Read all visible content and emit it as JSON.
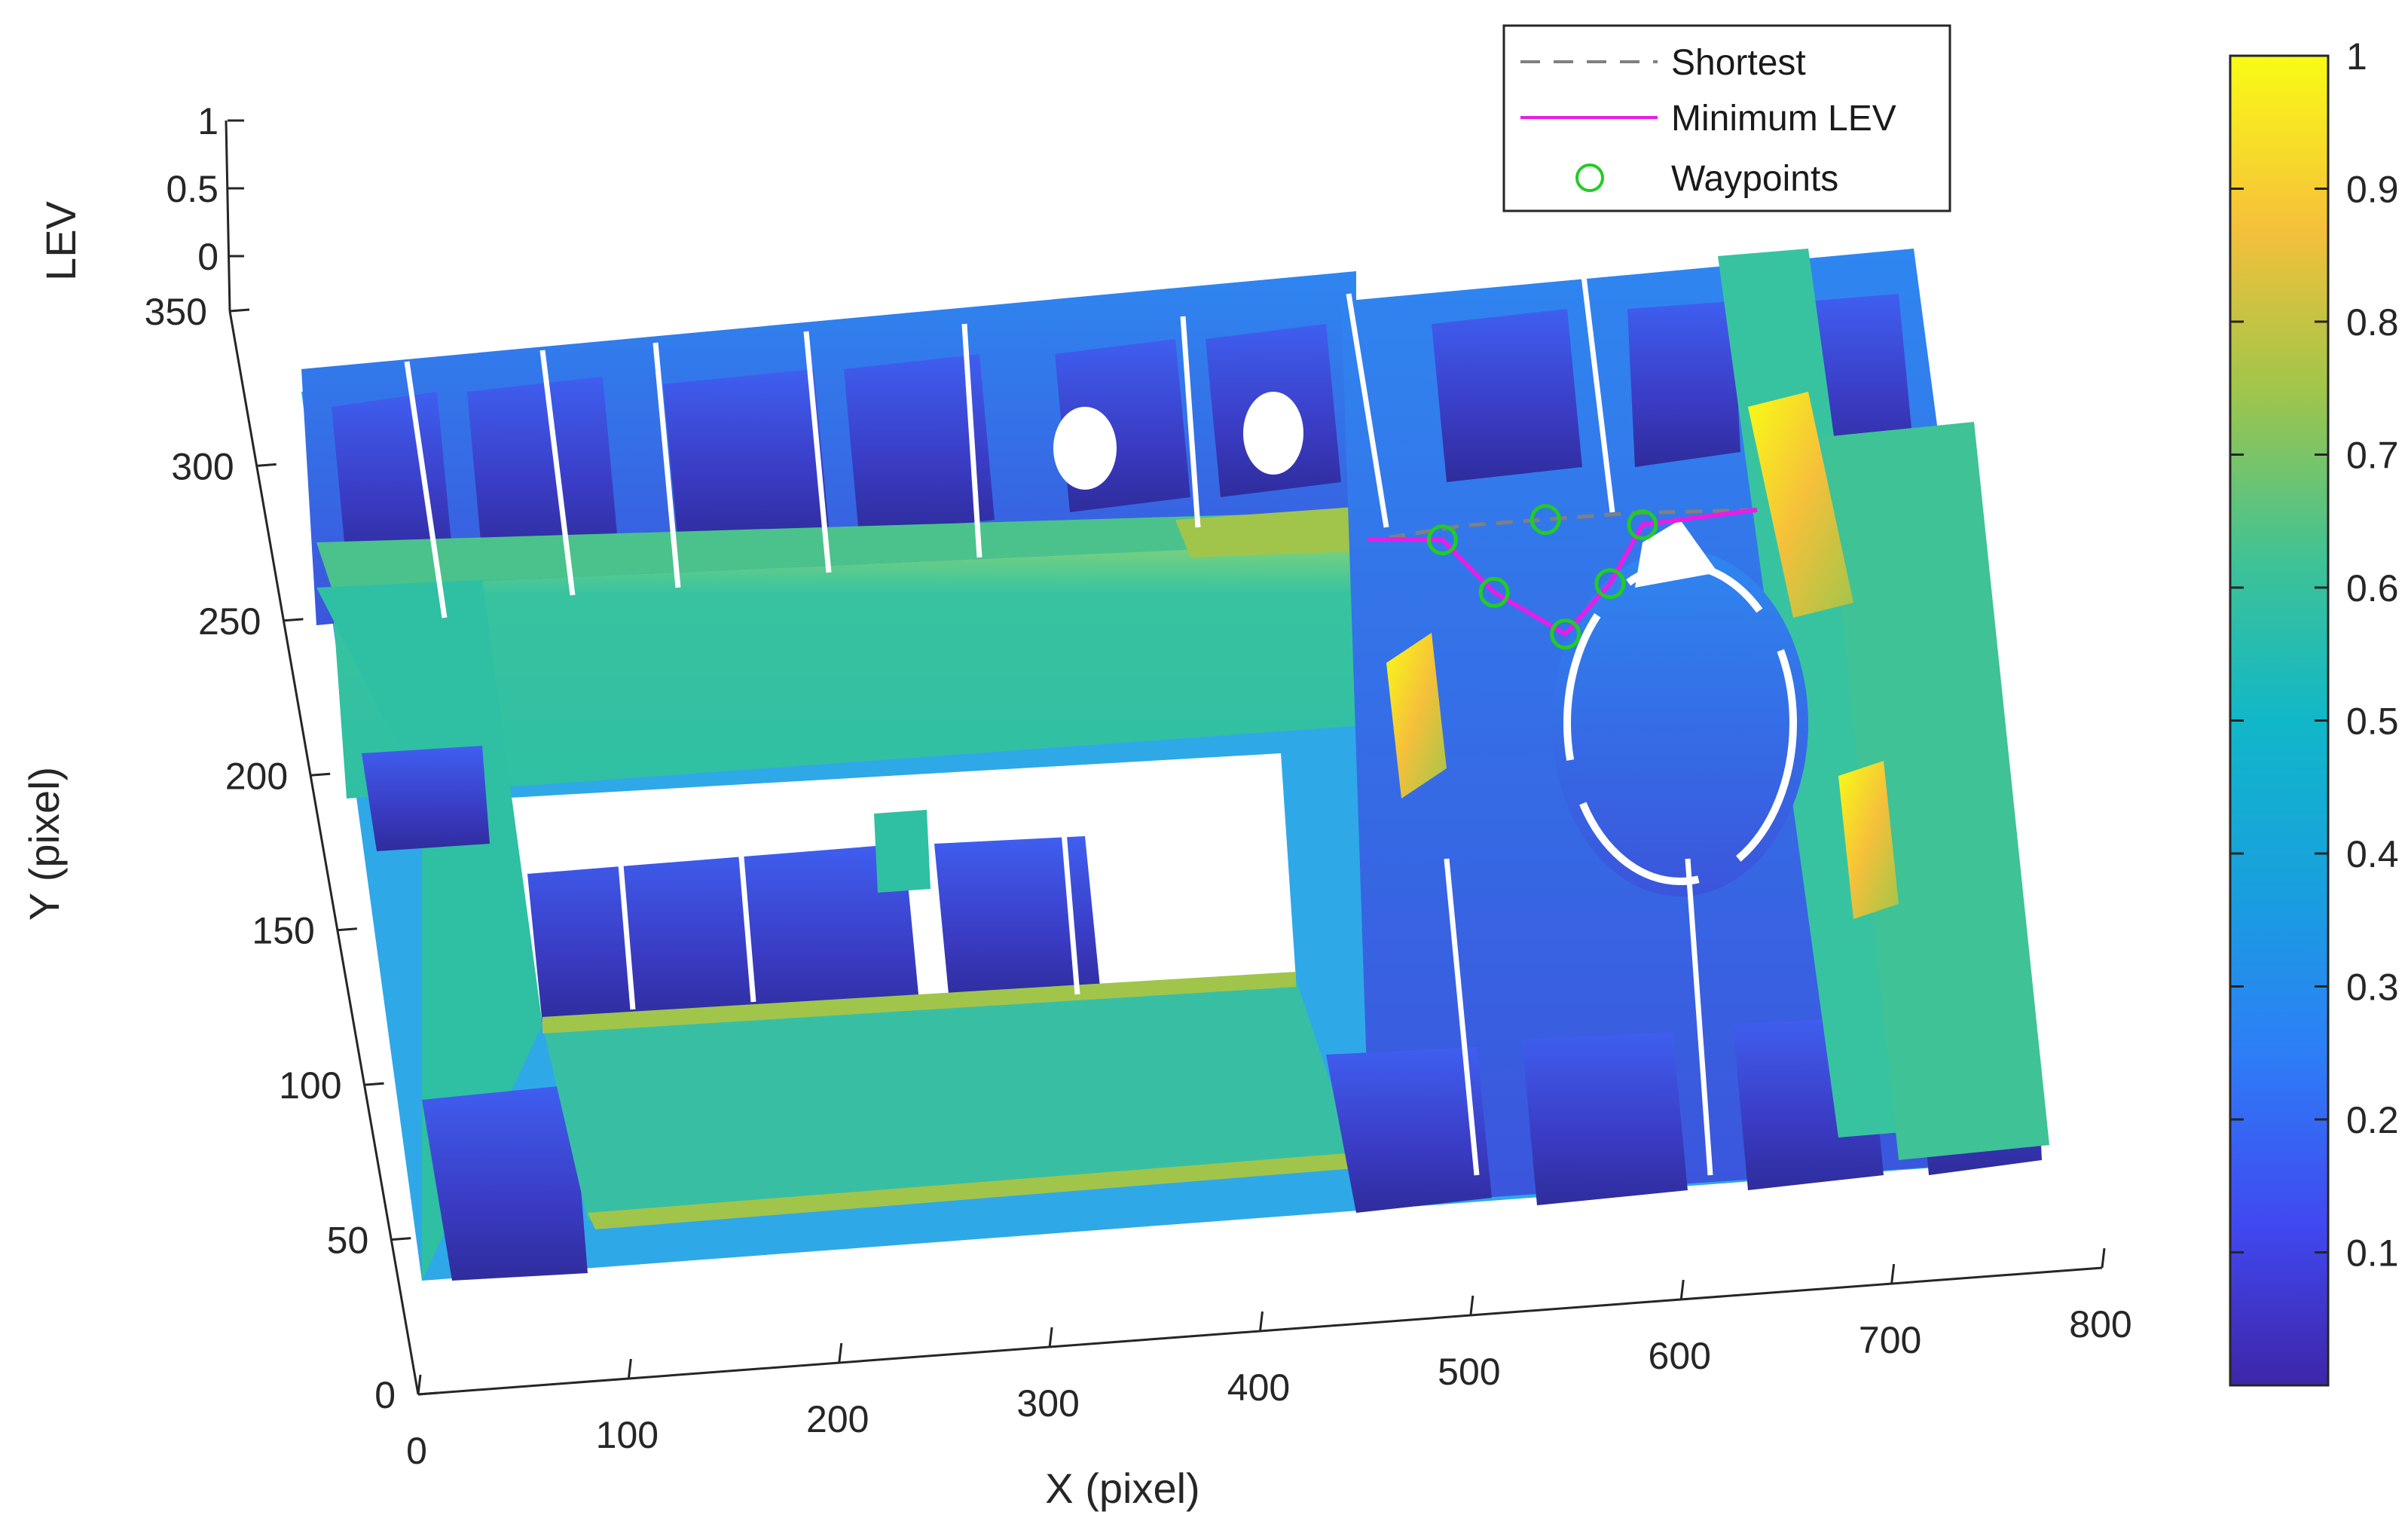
{
  "chart_data": {
    "type": "surface",
    "title": "",
    "xlabel": "X (pixel)",
    "ylabel": "Y (pixel)",
    "zlabel": "LEV",
    "xlim": [
      0,
      800
    ],
    "ylim": [
      0,
      350
    ],
    "zlim": [
      0,
      1
    ],
    "x_ticks": [
      "0",
      "100",
      "200",
      "300",
      "400",
      "500",
      "600",
      "700",
      "800"
    ],
    "y_ticks": [
      "0",
      "50",
      "100",
      "150",
      "200",
      "250",
      "300",
      "350"
    ],
    "z_ticks": [
      "0",
      "0.5",
      "1"
    ],
    "colorbar": {
      "ticks": [
        "0.1",
        "0.2",
        "0.3",
        "0.4",
        "0.5",
        "0.6",
        "0.7",
        "0.8",
        "0.9",
        "1"
      ],
      "range": [
        0,
        1
      ],
      "colormap": "parula"
    },
    "legend": {
      "placement": "top-right",
      "entries": [
        {
          "label": "Shortest",
          "style": "dashed",
          "color": "#808080"
        },
        {
          "label": "Minimum LEV",
          "style": "solid",
          "color": "#e61ee6"
        },
        {
          "label": "Waypoints",
          "style": "circle-marker",
          "color": "#22cc22"
        }
      ]
    },
    "series": [
      {
        "name": "Shortest",
        "x": [
          525,
          560,
          600,
          640,
          700
        ],
        "y": [
          250,
          252,
          252,
          252,
          250
        ]
      },
      {
        "name": "Minimum LEV",
        "x": [
          515,
          550,
          570,
          600,
          625,
          645,
          700
        ],
        "y": [
          250,
          248,
          230,
          215,
          230,
          248,
          250
        ]
      },
      {
        "name": "Waypoints",
        "x": [
          550,
          570,
          600,
          625,
          645,
          600
        ],
        "y": [
          248,
          230,
          215,
          230,
          248,
          252
        ]
      }
    ]
  }
}
